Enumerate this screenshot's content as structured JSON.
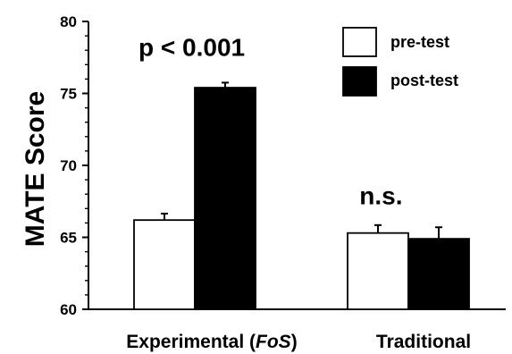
{
  "chart_data": {
    "type": "bar",
    "title": "",
    "xlabel": "",
    "ylabel": "MATE Score",
    "ylim": [
      60,
      80
    ],
    "yticks": [
      60,
      65,
      70,
      75,
      80
    ],
    "minor_tick_step": 1,
    "grid": false,
    "legend_position": "top-right",
    "categories": [
      {
        "pre": "Experimental (",
        "italic": "FoS",
        "post": ")"
      },
      {
        "pre": "Traditional",
        "italic": "",
        "post": ""
      }
    ],
    "series": [
      {
        "name": "pre-test",
        "fill": "#ffffff",
        "values": [
          66.2,
          65.3
        ],
        "errors": [
          0.45,
          0.55
        ]
      },
      {
        "name": "post-test",
        "fill": "#000000",
        "values": [
          75.4,
          64.9
        ],
        "errors": [
          0.35,
          0.8
        ]
      }
    ],
    "annotations": [
      {
        "text": "p < 0.001",
        "category": 0,
        "y": 77.6
      },
      {
        "text": "n.s.",
        "category": 1,
        "y": 67.3
      }
    ]
  }
}
